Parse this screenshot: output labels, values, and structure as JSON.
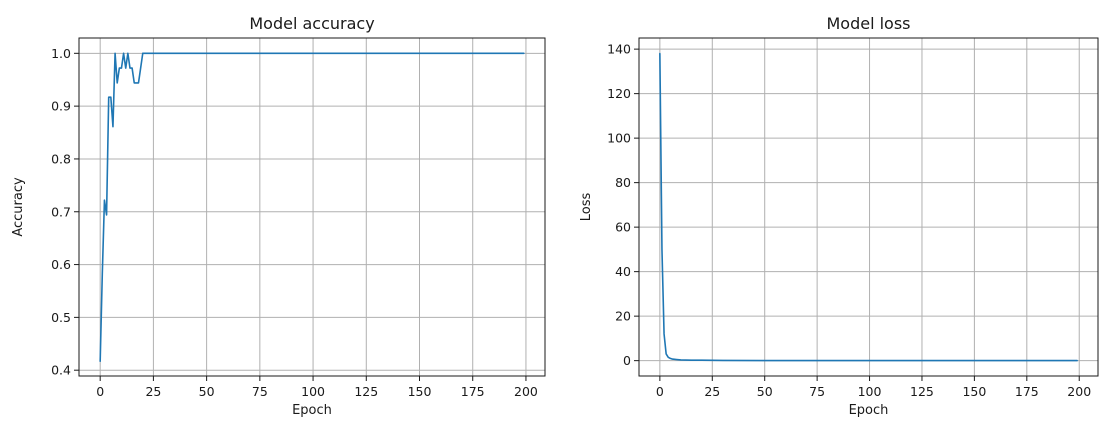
{
  "chart_data": [
    {
      "type": "line",
      "title": "Model accuracy",
      "xlabel": "Epoch",
      "ylabel": "Accuracy",
      "xlim": [
        -9.95,
        208.95
      ],
      "ylim": [
        0.389,
        1.029
      ],
      "xticks": [
        0,
        25,
        50,
        75,
        100,
        125,
        150,
        175,
        200
      ],
      "yticks": [
        0.4,
        0.5,
        0.6,
        0.7,
        0.8,
        0.9,
        1.0
      ],
      "ytick_labels": [
        "0.4",
        "0.5",
        "0.6",
        "0.7",
        "0.8",
        "0.9",
        "1.0"
      ],
      "grid": true,
      "series": [
        {
          "x": [
            0,
            1,
            2,
            3,
            4,
            5,
            6,
            7,
            8,
            9,
            10,
            11,
            12,
            13,
            14,
            15,
            16,
            17,
            18,
            19,
            20,
            21,
            22,
            30,
            50,
            100,
            150,
            199
          ],
          "y": [
            0.417,
            0.583,
            0.722,
            0.694,
            0.917,
            0.917,
            0.861,
            1.0,
            0.944,
            0.972,
            0.972,
            1.0,
            0.972,
            1.0,
            0.972,
            0.972,
            0.944,
            0.944,
            0.944,
            0.972,
            1.0,
            1.0,
            1.0,
            1.0,
            1.0,
            1.0,
            1.0,
            1.0
          ]
        }
      ]
    },
    {
      "type": "line",
      "title": "Model loss",
      "xlabel": "Epoch",
      "ylabel": "Loss",
      "xlim": [
        -9.95,
        208.95
      ],
      "ylim": [
        -6.9,
        145.0
      ],
      "xticks": [
        0,
        25,
        50,
        75,
        100,
        125,
        150,
        175,
        200
      ],
      "yticks": [
        0,
        20,
        40,
        60,
        80,
        100,
        120,
        140
      ],
      "ytick_labels": [
        "0",
        "20",
        "40",
        "60",
        "80",
        "100",
        "120",
        "140"
      ],
      "grid": true,
      "series": [
        {
          "x": [
            0,
            1,
            2,
            3,
            4,
            5,
            6,
            8,
            10,
            15,
            20,
            30,
            50,
            100,
            150,
            199
          ],
          "y": [
            138,
            50,
            12,
            3,
            1.5,
            1.0,
            0.7,
            0.5,
            0.3,
            0.2,
            0.2,
            0.1,
            0.05,
            0.02,
            0.02,
            0.02
          ]
        }
      ]
    }
  ]
}
